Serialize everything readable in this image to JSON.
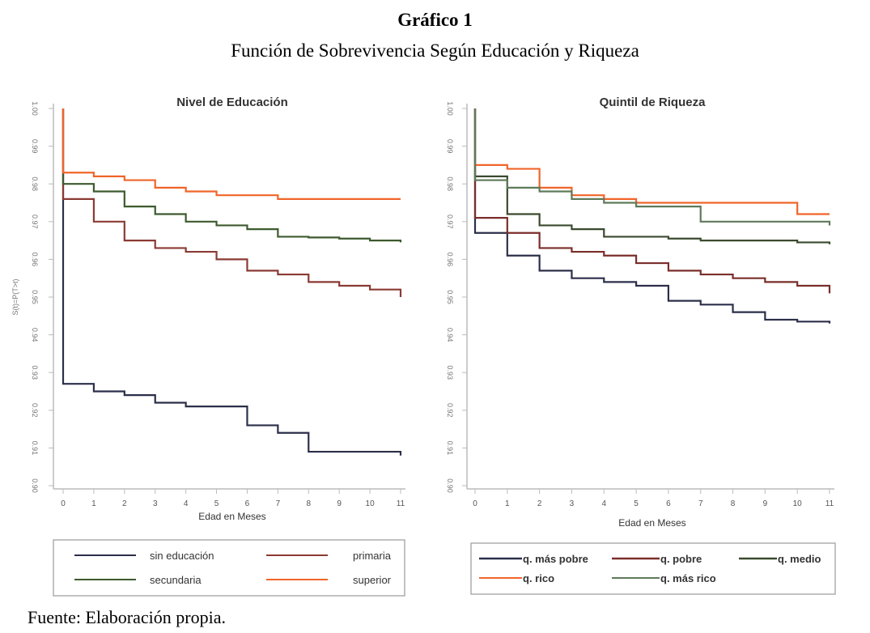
{
  "figure": {
    "title": "Gráfico 1",
    "subtitle": "Función de Sobrevivencia Según Educación y Riqueza",
    "source": "Fuente: Elaboración propia."
  },
  "chart_data": [
    {
      "type": "line",
      "step": true,
      "title": "Nivel de Educación",
      "xlabel": "Edad en Meses",
      "ylabel": "S(t)=P(T>t)",
      "xlim": [
        0,
        11
      ],
      "ylim": [
        0.9,
        1.0
      ],
      "x_ticks": [
        "0",
        "1",
        "2",
        "3",
        "4",
        "5",
        "6",
        "7",
        "8",
        "9",
        "10",
        "11"
      ],
      "y_ticks": [
        "0.90",
        "0.91",
        "0.92",
        "0.93",
        "0.94",
        "0.95",
        "0.96",
        "0.97",
        "0.98",
        "0.99",
        "1.00"
      ],
      "x": [
        0,
        1,
        2,
        3,
        4,
        5,
        6,
        7,
        8,
        9,
        10,
        11
      ],
      "legend_position": "bottom",
      "series": [
        {
          "name": "sin educación",
          "color": "#2b2f4a",
          "values": [
            0.927,
            0.925,
            0.924,
            0.922,
            0.921,
            0.921,
            0.916,
            0.914,
            0.909,
            0.909,
            0.909,
            0.908
          ]
        },
        {
          "name": "primaria",
          "color": "#8b3a34",
          "values": [
            0.976,
            0.97,
            0.965,
            0.963,
            0.962,
            0.96,
            0.957,
            0.956,
            0.954,
            0.953,
            0.952,
            0.95
          ]
        },
        {
          "name": "secundaria",
          "color": "#3d5a2e",
          "values": [
            0.98,
            0.978,
            0.974,
            0.972,
            0.97,
            0.969,
            0.968,
            0.966,
            0.9658,
            0.9655,
            0.965,
            0.9645
          ]
        },
        {
          "name": "superior",
          "color": "#f0652a",
          "values": [
            0.983,
            0.982,
            0.981,
            0.979,
            0.978,
            0.977,
            0.977,
            0.976,
            0.976,
            0.976,
            0.976,
            0.976
          ]
        }
      ]
    },
    {
      "type": "line",
      "step": true,
      "title": "Quintil de Riqueza",
      "xlabel": "Edad en Meses",
      "ylabel": "",
      "xlim": [
        0,
        11
      ],
      "ylim": [
        0.9,
        1.0
      ],
      "x_ticks": [
        "0",
        "1",
        "2",
        "3",
        "4",
        "5",
        "6",
        "7",
        "8",
        "9",
        "10",
        "11"
      ],
      "y_ticks": [
        "0.90",
        "0.91",
        "0.92",
        "0.93",
        "0.94",
        "0.95",
        "0.96",
        "0.97",
        "0.98",
        "0.99",
        "1.00"
      ],
      "x": [
        0,
        1,
        2,
        3,
        4,
        5,
        6,
        7,
        8,
        9,
        10,
        11
      ],
      "legend_position": "bottom",
      "series": [
        {
          "name": "q. más pobre",
          "color": "#2b2f4a",
          "values": [
            0.967,
            0.961,
            0.957,
            0.955,
            0.954,
            0.953,
            0.949,
            0.948,
            0.946,
            0.944,
            0.9435,
            0.943
          ]
        },
        {
          "name": "q. pobre",
          "color": "#7a2e2a",
          "values": [
            0.971,
            0.967,
            0.963,
            0.962,
            0.961,
            0.959,
            0.957,
            0.956,
            0.955,
            0.954,
            0.953,
            0.951
          ]
        },
        {
          "name": "q. medio",
          "color": "#3a4a2e",
          "values": [
            0.982,
            0.972,
            0.969,
            0.968,
            0.966,
            0.966,
            0.9655,
            0.965,
            0.965,
            0.965,
            0.9645,
            0.964
          ]
        },
        {
          "name": "q. rico",
          "color": "#f0652a",
          "values": [
            0.985,
            0.984,
            0.979,
            0.977,
            0.976,
            0.975,
            0.975,
            0.975,
            0.975,
            0.975,
            0.972,
            0.972
          ]
        },
        {
          "name": "q. más rico",
          "color": "#5e7a5a",
          "values": [
            0.981,
            0.979,
            0.978,
            0.976,
            0.975,
            0.974,
            0.974,
            0.97,
            0.97,
            0.97,
            0.97,
            0.969
          ]
        }
      ]
    }
  ]
}
